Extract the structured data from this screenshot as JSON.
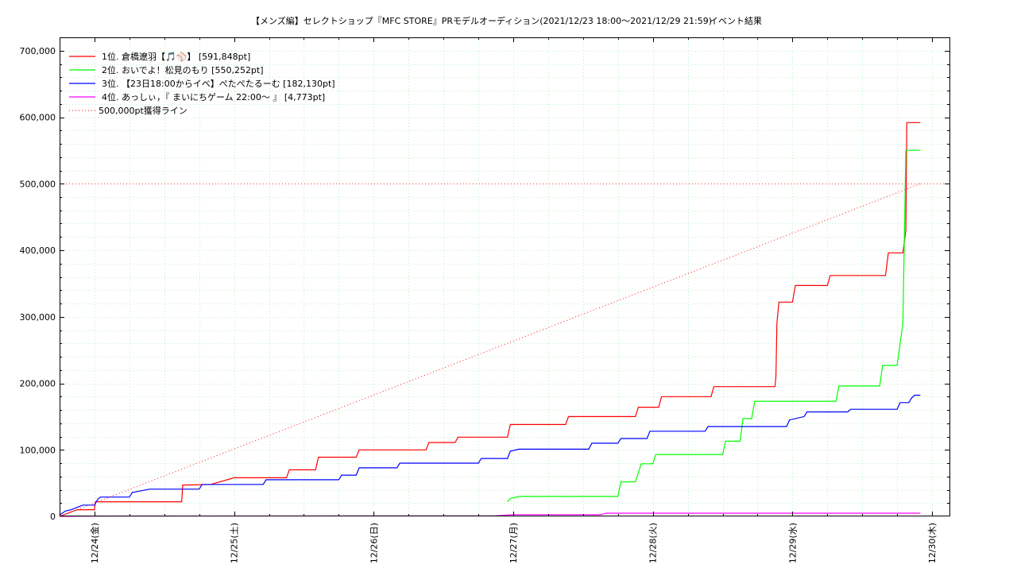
{
  "chart_data": {
    "type": "line",
    "title": "【メンズ編】セレクトショップ『MFC STORE』PRモデルオーディション(2021/12/23 18:00〜2021/12/29 21:59)",
    "subtitle": "イベント結果",
    "xlabel": "",
    "ylabel": "",
    "x_range": [
      "2021/12/23 18:00",
      "2021/12/30 03:00"
    ],
    "x_ticks": [
      "12/24(金)",
      "12/25(土)",
      "12/26(日)",
      "12/27(月)",
      "12/28(火)",
      "12/29(水)",
      "12/30(木)"
    ],
    "y_ticks": [
      "0",
      "100,000",
      "200,000",
      "300,000",
      "400,000",
      "500,000",
      "600,000",
      "700,000"
    ],
    "ylim": [
      0,
      720000
    ],
    "grid": true,
    "legend_position": "top-left",
    "series": [
      {
        "name": "1位. 倉橋遼羽【🎵⚾】 [591,848pt]",
        "color": "#ff0000",
        "style": "solid",
        "points": [
          [
            "2021/12/23 18:00",
            0
          ],
          [
            "2021/12/23 21:00",
            10000
          ],
          [
            "2021/12/24 00:00",
            10000
          ],
          [
            "2021/12/24 00:10",
            22000
          ],
          [
            "2021/12/24 15:00",
            22000
          ],
          [
            "2021/12/24 15:10",
            47000
          ],
          [
            "2021/12/24 20:00",
            48000
          ],
          [
            "2021/12/25 00:00",
            58000
          ],
          [
            "2021/12/25 09:00",
            58000
          ],
          [
            "2021/12/25 09:30",
            70000
          ],
          [
            "2021/12/25 14:00",
            70000
          ],
          [
            "2021/12/25 14:30",
            89000
          ],
          [
            "2021/12/25 21:00",
            89000
          ],
          [
            "2021/12/25 21:30",
            100000
          ],
          [
            "2021/12/26 09:00",
            100000
          ],
          [
            "2021/12/26 09:30",
            111000
          ],
          [
            "2021/12/26 14:00",
            111000
          ],
          [
            "2021/12/26 14:30",
            119000
          ],
          [
            "2021/12/26 23:00",
            119000
          ],
          [
            "2021/12/26 23:30",
            138000
          ],
          [
            "2021/12/27 09:00",
            138000
          ],
          [
            "2021/12/27 09:30",
            150000
          ],
          [
            "2021/12/27 21:00",
            150000
          ],
          [
            "2021/12/27 21:30",
            164000
          ],
          [
            "2021/12/28 01:00",
            164000
          ],
          [
            "2021/12/28 01:30",
            180000
          ],
          [
            "2021/12/28 10:00",
            180000
          ],
          [
            "2021/12/28 10:30",
            195000
          ],
          [
            "2021/12/28 21:00",
            195000
          ],
          [
            "2021/12/28 21:10",
            210000
          ],
          [
            "2021/12/28 21:20",
            290000
          ],
          [
            "2021/12/28 21:40",
            322000
          ],
          [
            "2021/12/29 00:00",
            322000
          ],
          [
            "2021/12/29 00:30",
            347000
          ],
          [
            "2021/12/29 06:00",
            347000
          ],
          [
            "2021/12/29 06:30",
            362000
          ],
          [
            "2021/12/29 16:00",
            362000
          ],
          [
            "2021/12/29 16:30",
            396000
          ],
          [
            "2021/12/29 19:00",
            396000
          ],
          [
            "2021/12/29 19:30",
            430000
          ],
          [
            "2021/12/29 19:40",
            591848
          ],
          [
            "2021/12/29 21:59",
            591848
          ]
        ]
      },
      {
        "name": "2位. おいでよ！松見のもり [550,252pt]",
        "color": "#00ff00",
        "style": "solid",
        "points": [
          [
            "2021/12/26 23:00",
            22000
          ],
          [
            "2021/12/26 23:30",
            27000
          ],
          [
            "2021/12/27 01:00",
            30000
          ],
          [
            "2021/12/27 18:00",
            30000
          ],
          [
            "2021/12/27 18:30",
            52000
          ],
          [
            "2021/12/27 21:00",
            52000
          ],
          [
            "2021/12/27 22:00",
            79000
          ],
          [
            "2021/12/28 00:00",
            79000
          ],
          [
            "2021/12/28 00:30",
            93000
          ],
          [
            "2021/12/28 12:00",
            93000
          ],
          [
            "2021/12/28 12:30",
            113000
          ],
          [
            "2021/12/28 15:00",
            113000
          ],
          [
            "2021/12/28 15:30",
            147000
          ],
          [
            "2021/12/28 17:00",
            147000
          ],
          [
            "2021/12/28 17:30",
            173000
          ],
          [
            "2021/12/29 07:30",
            173000
          ],
          [
            "2021/12/29 08:00",
            196000
          ],
          [
            "2021/12/29 15:00",
            196000
          ],
          [
            "2021/12/29 15:30",
            227000
          ],
          [
            "2021/12/29 18:00",
            227000
          ],
          [
            "2021/12/29 19:00",
            290000
          ],
          [
            "2021/12/29 19:30",
            550252
          ],
          [
            "2021/12/29 21:59",
            550252
          ]
        ]
      },
      {
        "name": "3位. 【23日18:00からイベ】ぺたぺたるーむ [182,130pt]",
        "color": "#0000ff",
        "style": "solid",
        "points": [
          [
            "2021/12/23 18:00",
            2000
          ],
          [
            "2021/12/23 19:00",
            8000
          ],
          [
            "2021/12/23 20:00",
            10000
          ],
          [
            "2021/12/23 22:00",
            17000
          ],
          [
            "2021/12/24 00:00",
            17000
          ],
          [
            "2021/12/24 00:30",
            25000
          ],
          [
            "2021/12/24 01:00",
            29000
          ],
          [
            "2021/12/24 06:00",
            29000
          ],
          [
            "2021/12/24 06:30",
            36000
          ],
          [
            "2021/12/24 09:30",
            41000
          ],
          [
            "2021/12/24 18:00",
            41000
          ],
          [
            "2021/12/24 18:30",
            48000
          ],
          [
            "2021/12/25 05:00",
            48000
          ],
          [
            "2021/12/25 05:30",
            55000
          ],
          [
            "2021/12/25 18:00",
            55000
          ],
          [
            "2021/12/25 18:30",
            62000
          ],
          [
            "2021/12/25 21:00",
            62000
          ],
          [
            "2021/12/25 21:30",
            73000
          ],
          [
            "2021/12/26 04:00",
            73000
          ],
          [
            "2021/12/26 04:30",
            80000
          ],
          [
            "2021/12/26 18:00",
            80000
          ],
          [
            "2021/12/26 18:30",
            87000
          ],
          [
            "2021/12/26 23:00",
            87000
          ],
          [
            "2021/12/26 23:30",
            98000
          ],
          [
            "2021/12/27 01:00",
            101000
          ],
          [
            "2021/12/27 13:00",
            101000
          ],
          [
            "2021/12/27 13:30",
            110000
          ],
          [
            "2021/12/27 18:00",
            110000
          ],
          [
            "2021/12/27 18:30",
            117000
          ],
          [
            "2021/12/27 23:00",
            117000
          ],
          [
            "2021/12/27 23:30",
            128000
          ],
          [
            "2021/12/28 09:00",
            128000
          ],
          [
            "2021/12/28 09:30",
            135000
          ],
          [
            "2021/12/28 23:00",
            135000
          ],
          [
            "2021/12/28 23:30",
            145000
          ],
          [
            "2021/12/29 02:00",
            150000
          ],
          [
            "2021/12/29 02:30",
            157000
          ],
          [
            "2021/12/29 09:30",
            157000
          ],
          [
            "2021/12/29 10:00",
            161000
          ],
          [
            "2021/12/29 18:00",
            161000
          ],
          [
            "2021/12/29 18:30",
            171000
          ],
          [
            "2021/12/29 20:00",
            171000
          ],
          [
            "2021/12/29 20:30",
            178000
          ],
          [
            "2021/12/29 21:00",
            182130
          ],
          [
            "2021/12/29 21:59",
            182130
          ]
        ]
      },
      {
        "name": "4位. あっしぃ，『 まいにちゲーム 22:00〜 』 [4,773pt]",
        "color": "#ff00ff",
        "style": "solid",
        "points": [
          [
            "2021/12/23 18:00",
            0
          ],
          [
            "2021/12/24 00:00",
            300
          ],
          [
            "2021/12/26 21:00",
            1000
          ],
          [
            "2021/12/27 00:00",
            2500
          ],
          [
            "2021/12/27 15:00",
            2500
          ],
          [
            "2021/12/27 16:00",
            4773
          ],
          [
            "2021/12/29 21:59",
            4773
          ]
        ]
      },
      {
        "name": "500,000pt獲得ライン",
        "color": "#ff0000",
        "style": "dotted",
        "points": [
          [
            "2021/12/23 18:00",
            0
          ],
          [
            "2021/12/29 21:59",
            500000
          ]
        ]
      }
    ],
    "reference_line": {
      "y": 500000,
      "color": "#ff0000",
      "style": "dotted"
    }
  }
}
